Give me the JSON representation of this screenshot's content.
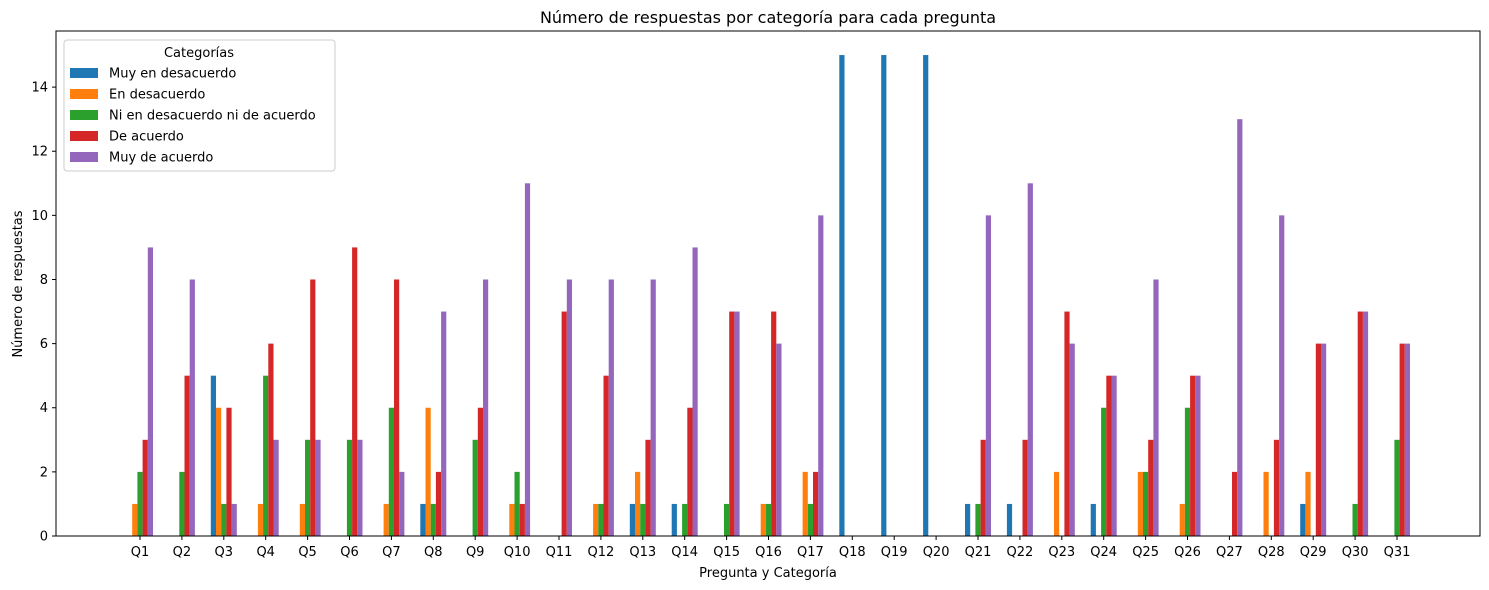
{
  "chart_data": {
    "type": "bar",
    "title": "Número de respuestas por categoría para cada pregunta",
    "xlabel": "Pregunta y Categoría",
    "ylabel": "Número de respuestas",
    "ylim": [
      0,
      15.75
    ],
    "yticks": [
      0,
      2,
      4,
      6,
      8,
      10,
      12,
      14
    ],
    "grid": false,
    "legend": {
      "title": "Categorías",
      "position": "upper-left"
    },
    "categories": [
      "Q1",
      "Q2",
      "Q3",
      "Q4",
      "Q5",
      "Q6",
      "Q7",
      "Q8",
      "Q9",
      "Q10",
      "Q11",
      "Q12",
      "Q13",
      "Q14",
      "Q15",
      "Q16",
      "Q17",
      "Q18",
      "Q19",
      "Q20",
      "Q21",
      "Q22",
      "Q23",
      "Q24",
      "Q25",
      "Q26",
      "Q27",
      "Q28",
      "Q29",
      "Q30",
      "Q31"
    ],
    "series": [
      {
        "name": "Muy en desacuerdo",
        "color": "#1f77b4",
        "values": [
          0,
          0,
          5,
          0,
          0,
          0,
          0,
          1,
          0,
          0,
          0,
          0,
          1,
          1,
          0,
          0,
          0,
          15,
          15,
          15,
          1,
          1,
          0,
          1,
          0,
          0,
          0,
          0,
          1,
          0,
          0
        ]
      },
      {
        "name": "En desacuerdo",
        "color": "#ff7f0e",
        "values": [
          1,
          0,
          4,
          1,
          1,
          0,
          1,
          4,
          0,
          1,
          0,
          1,
          2,
          0,
          0,
          1,
          2,
          0,
          0,
          0,
          0,
          0,
          2,
          0,
          2,
          1,
          0,
          2,
          2,
          0,
          0
        ]
      },
      {
        "name": "Ni en desacuerdo ni de acuerdo",
        "color": "#2ca02c",
        "values": [
          2,
          2,
          1,
          5,
          3,
          3,
          4,
          1,
          3,
          2,
          0,
          1,
          1,
          1,
          1,
          1,
          1,
          0,
          0,
          0,
          1,
          0,
          0,
          4,
          2,
          4,
          0,
          0,
          0,
          1,
          3
        ]
      },
      {
        "name": "De acuerdo",
        "color": "#d62728",
        "values": [
          3,
          5,
          4,
          6,
          8,
          9,
          8,
          2,
          4,
          1,
          7,
          5,
          3,
          4,
          7,
          7,
          2,
          0,
          0,
          0,
          3,
          3,
          7,
          5,
          3,
          5,
          2,
          3,
          6,
          7,
          6
        ]
      },
      {
        "name": "Muy de acuerdo",
        "color": "#9467bd",
        "values": [
          9,
          8,
          1,
          3,
          3,
          3,
          2,
          7,
          8,
          11,
          8,
          8,
          8,
          9,
          7,
          6,
          10,
          0,
          0,
          0,
          10,
          11,
          6,
          5,
          8,
          5,
          13,
          10,
          6,
          7,
          6
        ]
      }
    ]
  }
}
